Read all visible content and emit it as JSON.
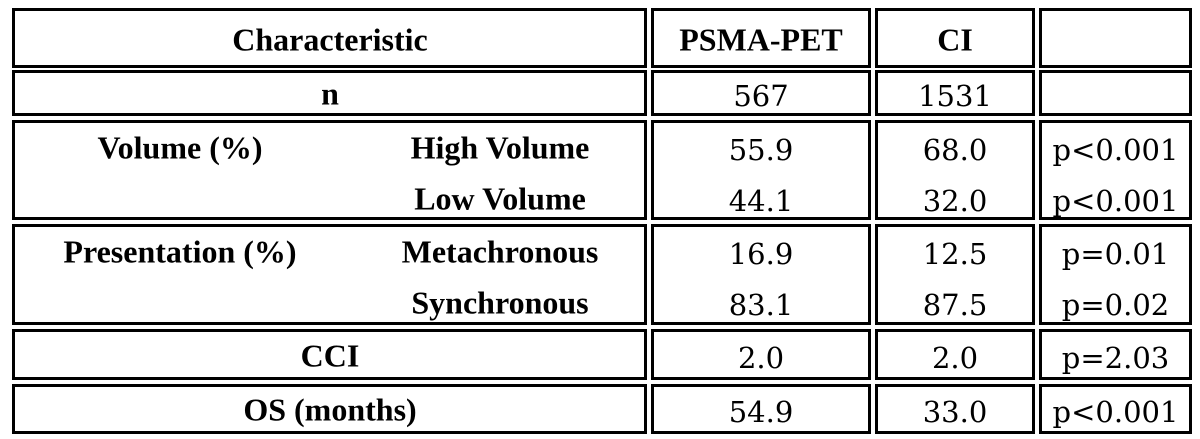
{
  "table": {
    "header": [
      "Characteristic",
      "PSMA-PET",
      "CI"
    ],
    "rows": [
      {
        "label": "n",
        "cells": [
          "567",
          "1531"
        ]
      },
      {
        "label": "Volume (%)",
        "subrows": [
          {
            "label": "High Volume",
            "cells": [
              "55.9",
              "68.0",
              "p<0.001"
            ]
          },
          {
            "label": "Low Volume",
            "cells": [
              "44.1",
              "32.0",
              "p<0.001"
            ]
          }
        ]
      },
      {
        "label": "Presentation (%)",
        "subrows": [
          {
            "label": "Metachronous",
            "cells": [
              "16.9",
              "12.5",
              "p=0.01"
            ]
          },
          {
            "label": "Synchronous",
            "cells": [
              "83.1",
              "87.5",
              "p=0.02"
            ]
          }
        ]
      },
      {
        "label": "CCI",
        "cells": [
          "2.0",
          "2.0",
          "p=2.03"
        ]
      },
      {
        "label": "OS (months)",
        "cells": [
          "54.9",
          "33.0",
          "p<0.001"
        ]
      }
    ]
  }
}
